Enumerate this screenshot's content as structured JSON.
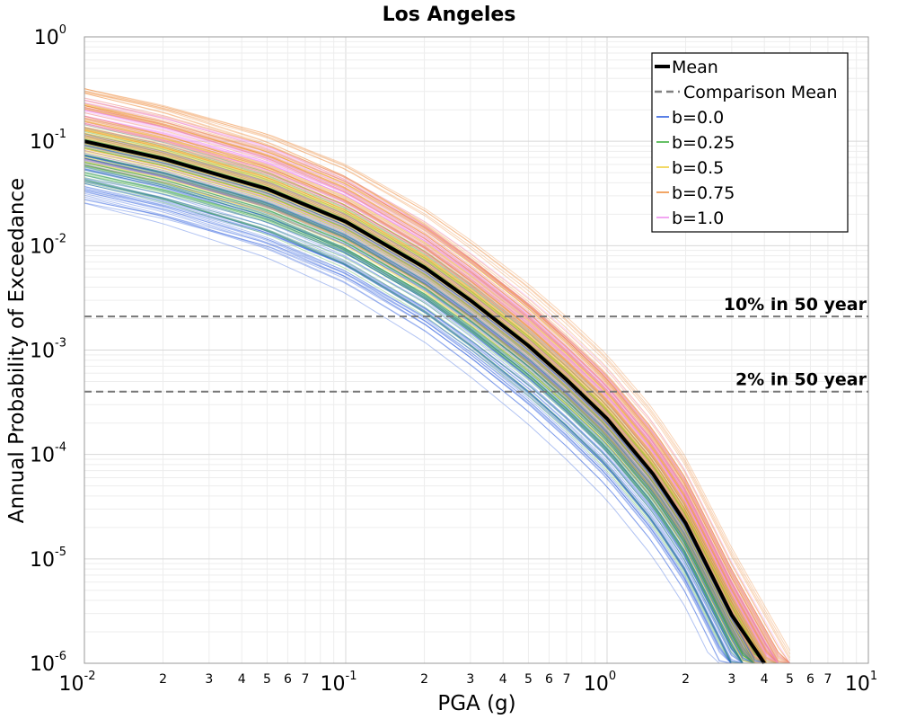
{
  "chart_data": {
    "type": "line",
    "title": "Los Angeles",
    "xlabel": "PGA (g)",
    "ylabel": "Annual Probability of Exceedance",
    "xscale": "log",
    "yscale": "log",
    "xlim": [
      0.01,
      10
    ],
    "ylim": [
      1e-06,
      1
    ],
    "grid": true,
    "legend_position": "top-right",
    "x_major_ticks": [
      {
        "base": "10",
        "exp": "-2"
      },
      {
        "base": "10",
        "exp": "-1"
      },
      {
        "base": "10",
        "exp": "0"
      },
      {
        "base": "10",
        "exp": "1"
      }
    ],
    "y_major_ticks": [
      {
        "base": "10",
        "exp": "0"
      },
      {
        "base": "10",
        "exp": "-1"
      },
      {
        "base": "10",
        "exp": "-2"
      },
      {
        "base": "10",
        "exp": "-3"
      },
      {
        "base": "10",
        "exp": "-4"
      },
      {
        "base": "10",
        "exp": "-5"
      },
      {
        "base": "10",
        "exp": "-6"
      }
    ],
    "x_minor_tick_labels": [
      "2",
      "3",
      "4",
      "5",
      "6",
      "7"
    ],
    "reference_lines": [
      {
        "label": "10% in 50 year",
        "y": 0.0021
      },
      {
        "label": "2% in 50 year",
        "y": 0.0004
      }
    ],
    "series": [
      {
        "name": "Mean",
        "color": "#000000",
        "style": "solid",
        "x": [
          0.01,
          0.02,
          0.05,
          0.1,
          0.2,
          0.3,
          0.5,
          0.7,
          1.0,
          1.5,
          2.0,
          3.0,
          4.0
        ],
        "y": [
          0.1,
          0.068,
          0.035,
          0.017,
          0.0062,
          0.003,
          0.0011,
          0.00052,
          0.00022,
          6.5e-05,
          2.2e-05,
          2.9e-06,
          8e-07
        ]
      },
      {
        "name": "Comparison Mean",
        "color": "#808080",
        "style": "dashed",
        "x": [
          0.01,
          0.02,
          0.05,
          0.1,
          0.2,
          0.3,
          0.5,
          0.7,
          1.0,
          1.5,
          2.0,
          3.0,
          4.0
        ],
        "y": [
          0.1,
          0.068,
          0.035,
          0.017,
          0.0062,
          0.003,
          0.0011,
          0.00052,
          0.00022,
          6.5e-05,
          2.2e-05,
          2.9e-06,
          8e-07
        ]
      },
      {
        "name": "b=0.0",
        "color": "#2255dd",
        "style": "solid"
      },
      {
        "name": "b=0.25",
        "color": "#33aa33",
        "style": "solid"
      },
      {
        "name": "b=0.5",
        "color": "#eecc33",
        "style": "solid"
      },
      {
        "name": "b=0.75",
        "color": "#ee8833",
        "style": "solid"
      },
      {
        "name": "b=1.0",
        "color": "#ee88ee",
        "style": "solid"
      }
    ]
  }
}
